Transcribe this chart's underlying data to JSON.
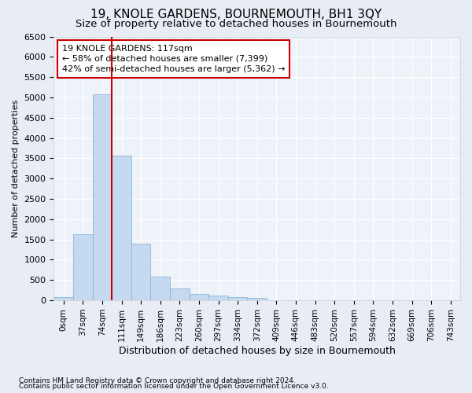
{
  "title": "19, KNOLE GARDENS, BOURNEMOUTH, BH1 3QY",
  "subtitle": "Size of property relative to detached houses in Bournemouth",
  "xlabel": "Distribution of detached houses by size in Bournemouth",
  "ylabel": "Number of detached properties",
  "footnote1": "Contains HM Land Registry data © Crown copyright and database right 2024.",
  "footnote2": "Contains public sector information licensed under the Open Government Licence v3.0.",
  "bar_labels": [
    "0sqm",
    "37sqm",
    "74sqm",
    "111sqm",
    "149sqm",
    "186sqm",
    "223sqm",
    "260sqm",
    "297sqm",
    "334sqm",
    "372sqm",
    "409sqm",
    "446sqm",
    "483sqm",
    "520sqm",
    "557sqm",
    "594sqm",
    "632sqm",
    "669sqm",
    "706sqm",
    "743sqm"
  ],
  "bar_values": [
    75,
    1625,
    5075,
    3575,
    1400,
    580,
    290,
    150,
    110,
    75,
    60,
    0,
    0,
    0,
    0,
    0,
    0,
    0,
    0,
    0,
    0
  ],
  "bar_color": "#c5d9f0",
  "bar_edge_color": "#8ab4d8",
  "vline_x_index": 3,
  "vline_color": "#cc0000",
  "annotation_line1": "19 KNOLE GARDENS: 117sqm",
  "annotation_line2": "← 58% of detached houses are smaller (7,399)",
  "annotation_line3": "42% of semi-detached houses are larger (5,362) →",
  "annotation_box_facecolor": "white",
  "annotation_box_edgecolor": "#cc0000",
  "ylim": [
    0,
    6500
  ],
  "yticks": [
    0,
    500,
    1000,
    1500,
    2000,
    2500,
    3000,
    3500,
    4000,
    4500,
    5000,
    5500,
    6000,
    6500
  ],
  "bg_color": "#e8edf5",
  "plot_bg_color": "#eef3fa",
  "grid_color": "#ffffff",
  "title_fontsize": 11,
  "subtitle_fontsize": 9.5,
  "xlabel_fontsize": 9,
  "ylabel_fontsize": 8,
  "tick_fontsize": 8,
  "annot_fontsize": 8,
  "footnote_fontsize": 6.5
}
